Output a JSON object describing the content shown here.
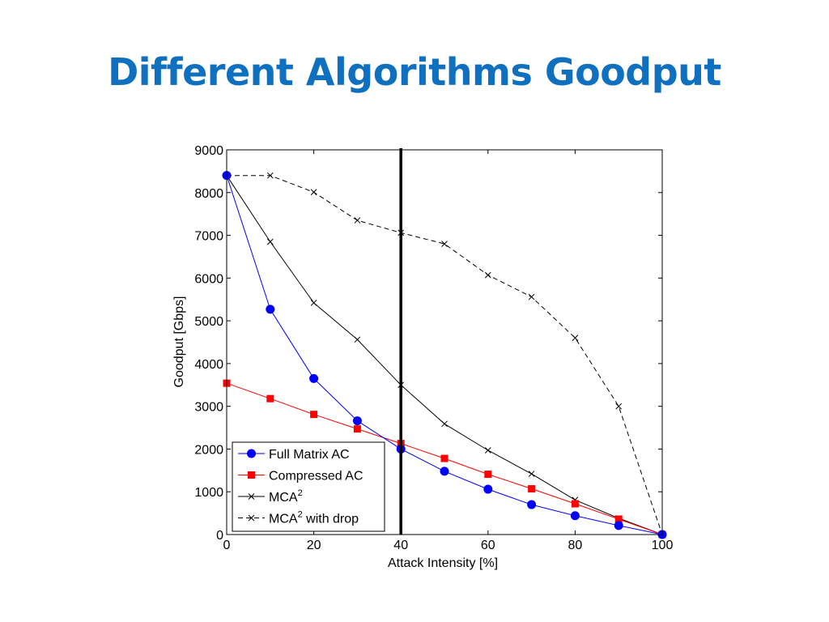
{
  "slide": {
    "title": "Different Algorithms Goodput"
  },
  "chart_data": {
    "type": "line",
    "title": "",
    "xlabel": "Attack Intensity [%]",
    "ylabel": "Goodput [Gbps]",
    "xlim": [
      0,
      100
    ],
    "ylim": [
      0,
      9000
    ],
    "x": [
      0,
      10,
      20,
      30,
      40,
      50,
      60,
      70,
      80,
      90,
      100
    ],
    "xticks": [
      0,
      20,
      40,
      60,
      80,
      100
    ],
    "yticks": [
      0,
      1000,
      2000,
      3000,
      4000,
      5000,
      6000,
      7000,
      8000,
      9000
    ],
    "grid": false,
    "legend_position": "bottom-left",
    "vertical_line_x": 40,
    "series": [
      {
        "name": "Full Matrix AC",
        "color": "#0000ff",
        "marker": "circle",
        "line": "solid",
        "values": [
          8400,
          5270,
          3650,
          2660,
          2000,
          1480,
          1060,
          700,
          440,
          210,
          0
        ]
      },
      {
        "name": "Compressed AC",
        "color": "#ff0000",
        "marker": "square",
        "line": "solid",
        "values": [
          3540,
          3180,
          2810,
          2470,
          2130,
          1780,
          1410,
          1070,
          720,
          360,
          0
        ]
      },
      {
        "name": "MCA",
        "name_superscript": "2",
        "color": "#000000",
        "marker": "x",
        "line": "solid",
        "values": [
          8400,
          6850,
          5420,
          4560,
          3500,
          2590,
          1970,
          1420,
          810,
          380,
          0
        ]
      },
      {
        "name": "MCA",
        "name_superscript": "2",
        "name_suffix": " with drop",
        "color": "#000000",
        "marker": "x",
        "line": "dashed",
        "values": [
          8400,
          8400,
          8010,
          7350,
          7060,
          6800,
          6070,
          5560,
          4600,
          3000,
          0
        ]
      }
    ]
  }
}
